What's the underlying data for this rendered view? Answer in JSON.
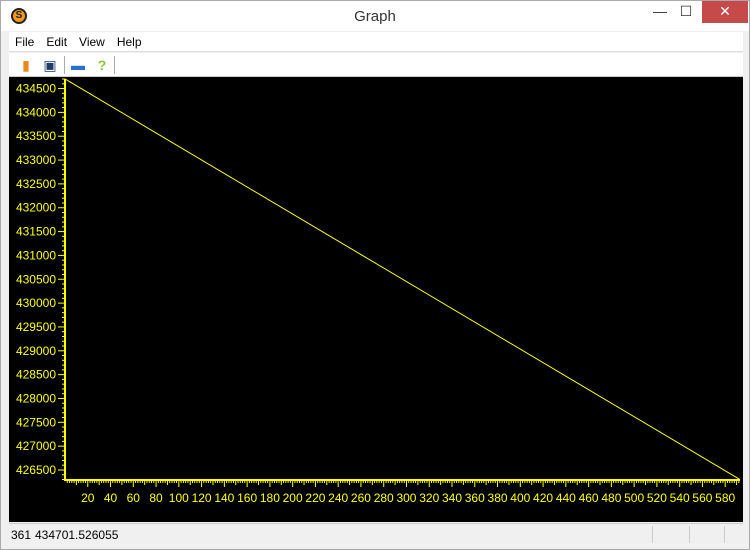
{
  "window": {
    "title": "Graph",
    "minimize": "—",
    "maximize": "☐",
    "close": "✕"
  },
  "menu": [
    "File",
    "Edit",
    "View",
    "Help"
  ],
  "toolbar": [
    {
      "icon": "open-icon"
    },
    {
      "icon": "save-icon"
    },
    {
      "icon": "print-icon"
    },
    {
      "icon": "help-icon"
    }
  ],
  "status": {
    "x": "361",
    "value": "434701.526055"
  },
  "chart_data": {
    "type": "line",
    "background": "#000000",
    "axis_color": "#ffff00",
    "line_color": "#ffff00",
    "label_color": "#ffff00",
    "xlim": [
      0,
      593
    ],
    "ylim": [
      426290,
      434700
    ],
    "xticks": [
      20,
      40,
      60,
      80,
      100,
      120,
      140,
      160,
      180,
      200,
      220,
      240,
      260,
      280,
      300,
      320,
      340,
      360,
      380,
      400,
      420,
      440,
      460,
      480,
      500,
      520,
      540,
      560,
      580
    ],
    "yticks": [
      434500,
      434000,
      433500,
      433000,
      432500,
      432000,
      431500,
      431000,
      430500,
      430000,
      429500,
      429000,
      428500,
      428000,
      427500,
      427000,
      426500
    ],
    "x": [
      0,
      593
    ],
    "y": [
      434701.5,
      426300
    ]
  }
}
